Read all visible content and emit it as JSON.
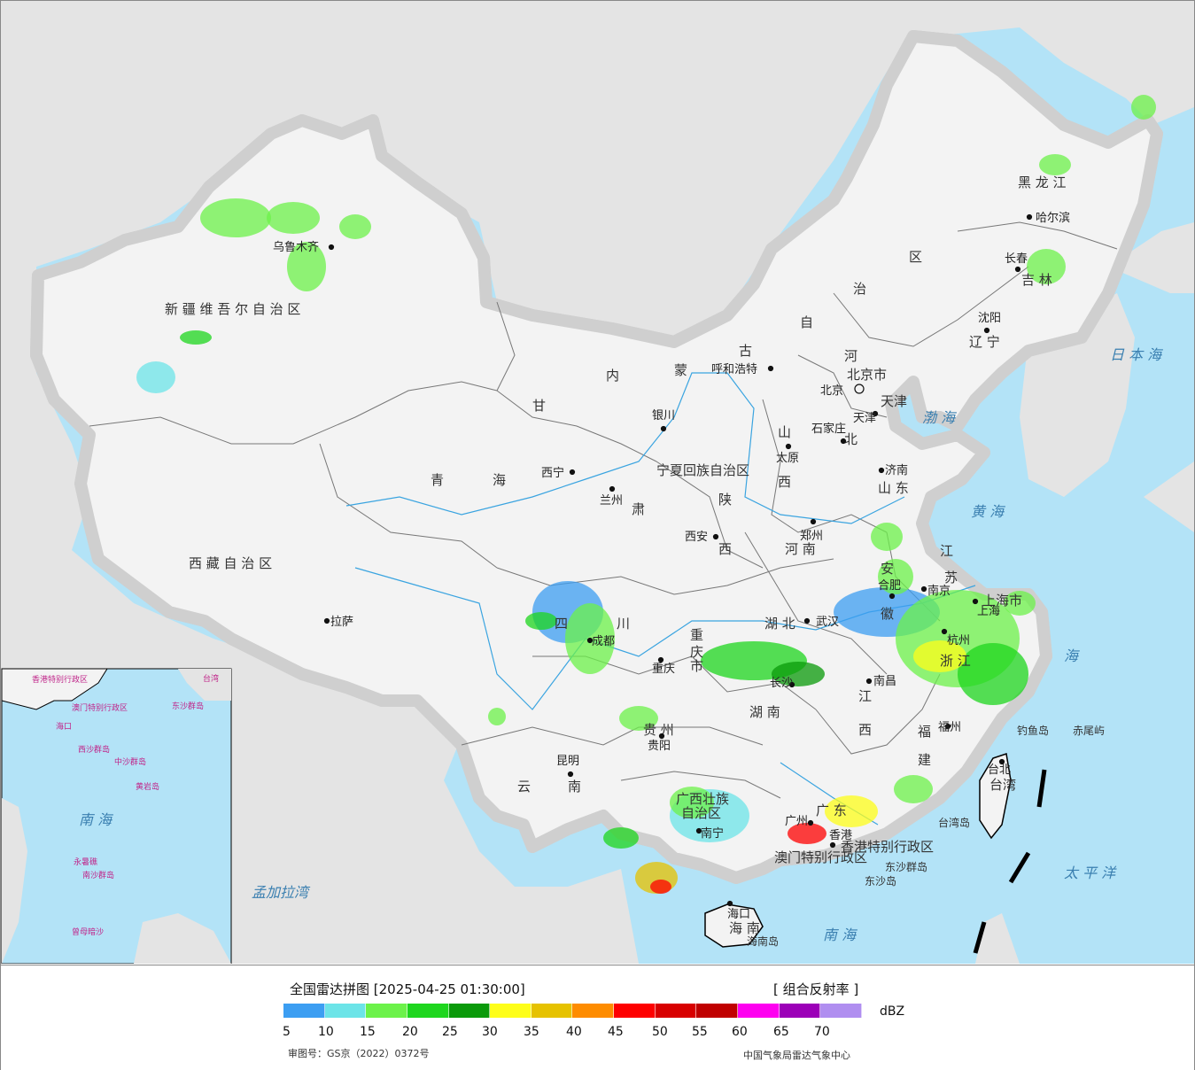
{
  "map": {
    "province_labels": [
      {
        "id": "xinjiang",
        "text": "新 疆 维 吾 尔 自 治 区"
      },
      {
        "id": "xizang",
        "text": "西 藏 自 治 区"
      },
      {
        "id": "qinghai-1",
        "text": "青"
      },
      {
        "id": "qinghai-2",
        "text": "海"
      },
      {
        "id": "gansu",
        "text": "甘"
      },
      {
        "id": "sichuan-1",
        "text": "四"
      },
      {
        "id": "sichuan-2",
        "text": "川"
      },
      {
        "id": "yunnan-1",
        "text": "云"
      },
      {
        "id": "yunnan-2",
        "text": "南"
      },
      {
        "id": "neimeng-1",
        "text": "内"
      },
      {
        "id": "neimeng-2",
        "text": "蒙"
      },
      {
        "id": "neimeng-3",
        "text": "古"
      },
      {
        "id": "neimeng-4",
        "text": "自"
      },
      {
        "id": "neimeng-5",
        "text": "治"
      },
      {
        "id": "neimeng-6",
        "text": "区"
      },
      {
        "id": "heilongjiang",
        "text": "黑   龙   江"
      },
      {
        "id": "jilin",
        "text": "吉   林"
      },
      {
        "id": "liaoning",
        "text": "辽   宁"
      },
      {
        "id": "hebei-1",
        "text": "河"
      },
      {
        "id": "hebei-2",
        "text": "北"
      },
      {
        "id": "shanxi-1",
        "text": "山"
      },
      {
        "id": "shanxi-2",
        "text": "西"
      },
      {
        "id": "shaanxi-1",
        "text": "陕"
      },
      {
        "id": "shaanxi-2",
        "text": "西"
      },
      {
        "id": "shandong",
        "text": "山  东"
      },
      {
        "id": "henan",
        "text": "河  南"
      },
      {
        "id": "jiangsu-1",
        "text": "江"
      },
      {
        "id": "jiangsu-2",
        "text": "苏"
      },
      {
        "id": "anhui-1",
        "text": "安"
      },
      {
        "id": "anhui-2",
        "text": "徽"
      },
      {
        "id": "hubei",
        "text": "湖   北"
      },
      {
        "id": "hunan",
        "text": "湖   南"
      },
      {
        "id": "jiangxi-1",
        "text": "江"
      },
      {
        "id": "jiangxi-2",
        "text": "西"
      },
      {
        "id": "zhejiang",
        "text": "浙  江"
      },
      {
        "id": "fujian-1",
        "text": "福"
      },
      {
        "id": "fujian-2",
        "text": "建"
      },
      {
        "id": "guizhou",
        "text": "贵   州"
      },
      {
        "id": "guangxi-1",
        "text": "广西壮族"
      },
      {
        "id": "guangxi-2",
        "text": "自治区"
      },
      {
        "id": "guangdong",
        "text": "广   东"
      },
      {
        "id": "chongqing-1",
        "text": "重"
      },
      {
        "id": "chongqing-2",
        "text": "庆"
      },
      {
        "id": "chongqing-3",
        "text": "市"
      },
      {
        "id": "ningxia",
        "text": "宁夏回族自治区"
      },
      {
        "id": "shanghai",
        "text": "上海市"
      },
      {
        "id": "beijing",
        "text": "北京市"
      },
      {
        "id": "tianjin",
        "text": "天津"
      },
      {
        "id": "gansu-2",
        "text": "肃"
      },
      {
        "id": "taiwan",
        "text": "台湾"
      },
      {
        "id": "hainan-prov",
        "text": "海    南"
      },
      {
        "id": "hk",
        "text": "香港特别行政区"
      },
      {
        "id": "macau",
        "text": "澳门特别行政区"
      }
    ],
    "cities": [
      {
        "id": "urumqi",
        "text": "乌鲁木齐"
      },
      {
        "id": "lhasa",
        "text": "拉萨"
      },
      {
        "id": "xining",
        "text": "西宁"
      },
      {
        "id": "lanzhou",
        "text": "兰州"
      },
      {
        "id": "yinchuan",
        "text": "银川"
      },
      {
        "id": "hohhot",
        "text": "呼和浩特"
      },
      {
        "id": "beijing-c",
        "text": "北京"
      },
      {
        "id": "tianjin-c",
        "text": "天津"
      },
      {
        "id": "shijiazhuang",
        "text": "石家庄"
      },
      {
        "id": "taiyuan",
        "text": "太原"
      },
      {
        "id": "jinan",
        "text": "济南"
      },
      {
        "id": "zhengzhou",
        "text": "郑州"
      },
      {
        "id": "xian",
        "text": "西安"
      },
      {
        "id": "chengdu",
        "text": "成都"
      },
      {
        "id": "chongqing-c",
        "text": "重庆"
      },
      {
        "id": "wuhan",
        "text": "武汉"
      },
      {
        "id": "hefei",
        "text": "合肥"
      },
      {
        "id": "nanjing",
        "text": "南京"
      },
      {
        "id": "shanghai-c",
        "text": "上海"
      },
      {
        "id": "hangzhou",
        "text": "杭州"
      },
      {
        "id": "changsha",
        "text": "长沙"
      },
      {
        "id": "nanchang",
        "text": "南昌"
      },
      {
        "id": "fuzhou",
        "text": "福州"
      },
      {
        "id": "guiyang",
        "text": "贵阳"
      },
      {
        "id": "kunming",
        "text": "昆明"
      },
      {
        "id": "nanning",
        "text": "南宁"
      },
      {
        "id": "guangzhou",
        "text": "广州"
      },
      {
        "id": "hongkong",
        "text": "香港"
      },
      {
        "id": "haikou",
        "text": "海口"
      },
      {
        "id": "taibei",
        "text": "台北"
      },
      {
        "id": "shenyang",
        "text": "沈阳"
      },
      {
        "id": "changchun",
        "text": "长春"
      },
      {
        "id": "harbin",
        "text": "哈尔滨"
      }
    ],
    "seas": [
      {
        "id": "sea-japan",
        "text": "日 本 海"
      },
      {
        "id": "sea-bohai",
        "text": "渤  海"
      },
      {
        "id": "sea-yellow",
        "text": "黄   海"
      },
      {
        "id": "sea-east",
        "text": "海"
      },
      {
        "id": "sea-south",
        "text": "南     海"
      },
      {
        "id": "sea-pacific",
        "text": "太   平   洋"
      },
      {
        "id": "sea-bengal",
        "text": "孟加拉湾"
      },
      {
        "id": "taiwan-strait",
        "text": "台湾岛"
      },
      {
        "id": "hainan-isle",
        "text": "海南岛"
      }
    ],
    "islands": [
      {
        "id": "diaoyu",
        "text": "钓鱼岛"
      },
      {
        "id": "chiwei",
        "text": "赤尾屿"
      },
      {
        "id": "dongsha-qd",
        "text": "东沙群岛"
      },
      {
        "id": "dongsha",
        "text": "东沙岛"
      }
    ],
    "inset": {
      "labels": [
        {
          "id": "inset-hk",
          "text": "香港特别行政区"
        },
        {
          "id": "inset-macau",
          "text": "澳门特别行政区"
        },
        {
          "id": "inset-taiwan",
          "text": "台湾"
        },
        {
          "id": "inset-dongsha",
          "text": "东沙群岛"
        },
        {
          "id": "inset-hainan",
          "text": "海口"
        },
        {
          "id": "inset-xisha",
          "text": "西沙群岛"
        },
        {
          "id": "inset-zhongsha",
          "text": "中沙群岛"
        },
        {
          "id": "inset-huangyan",
          "text": "黄岩岛"
        },
        {
          "id": "inset-nanhai",
          "text": "南   海"
        },
        {
          "id": "inset-nansha",
          "text": "南沙群岛"
        },
        {
          "id": "inset-yongshu",
          "text": "永暑礁"
        },
        {
          "id": "inset-zengmu",
          "text": "曾母暗沙"
        }
      ]
    },
    "colors": {
      "ocean": "#b3e3f7",
      "land": "#f2f2f2",
      "foreign": "#e4e4e4",
      "border": "#000000",
      "halo": "#cfcfcf",
      "river": "#3aa4e0"
    }
  },
  "legend": {
    "title": "全国雷达拼图 [2025-04-25 01:30:00]",
    "product": "[ 组合反射率 ]",
    "units": "dBZ",
    "ticks": [
      "5",
      "10",
      "15",
      "20",
      "25",
      "30",
      "35",
      "40",
      "45",
      "50",
      "55",
      "60",
      "65",
      "70"
    ],
    "colors": [
      "#3c9ef2",
      "#6ce4e8",
      "#6cf24a",
      "#1ed61e",
      "#0a9a0a",
      "#fefe1a",
      "#e6c200",
      "#fe8c00",
      "#fe0000",
      "#d80000",
      "#c00000",
      "#fe00f0",
      "#9c00b8",
      "#b08ef0"
    ],
    "approval": "审图号：GS京（2022）0372号",
    "credit": "中国气象局雷达气象中心"
  }
}
